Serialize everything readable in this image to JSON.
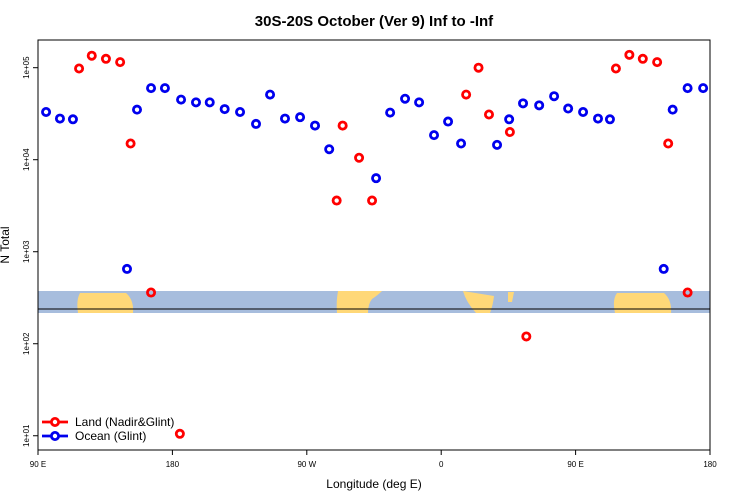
{
  "chart_data": {
    "type": "scatter",
    "title": "30S-20S October (Ver 9)   Inf to -Inf",
    "x_label": "Longitude (deg E)",
    "y_label": "N Total",
    "log_scale_y": true,
    "legend_position": "bottom-left",
    "xlim": [
      90,
      540
    ],
    "ylim": [
      7,
      200000
    ],
    "xticks": [
      {
        "value": 90,
        "label": "90 E"
      },
      {
        "value": 180,
        "label": "180"
      },
      {
        "value": 270,
        "label": "90 W"
      },
      {
        "value": 360,
        "label": "0"
      },
      {
        "value": 450,
        "label": "90 E"
      },
      {
        "value": 540,
        "label": "180"
      }
    ],
    "yticks": [
      {
        "value": 10,
        "label": "1e+01"
      },
      {
        "value": 100,
        "label": "1e+02"
      },
      {
        "value": 1000,
        "label": "1e+03"
      },
      {
        "value": 10000,
        "label": "1e+04"
      },
      {
        "value": 100000,
        "label": "1e+05"
      }
    ],
    "series": [
      {
        "name": "Land (Nadir&Glint)",
        "color": "#ff0000",
        "x": [
          117.5,
          126,
          135.5,
          145,
          152,
          165.7,
          185,
          290,
          294,
          305,
          313.7,
          376.7,
          385,
          392,
          406,
          417,
          477,
          486,
          495,
          504.6,
          512,
          525
        ],
        "values": [
          98000,
          135000,
          125000,
          115000,
          15000,
          360,
          10.5,
          3600,
          23500,
          10500,
          3600,
          51000,
          100000,
          31000,
          20000,
          120,
          98000,
          138000,
          125000,
          115000,
          15000,
          360
        ]
      },
      {
        "name": "Ocean (Glint)",
        "color": "#0000ee",
        "x": [
          95.4,
          104.7,
          113.4,
          149.6,
          156.3,
          165.7,
          175,
          185.8,
          195.8,
          205,
          215,
          225.3,
          236,
          245.4,
          255.4,
          265.5,
          275.5,
          285,
          316.4,
          325.8,
          335.8,
          345.2,
          355.2,
          364.6,
          373.3,
          397.4,
          405.5,
          414.8,
          425.6,
          435.6,
          445,
          455,
          465,
          473,
          509,
          515,
          525,
          535.4
        ],
        "values": [
          33000,
          28000,
          27500,
          650,
          35000,
          60000,
          60000,
          45000,
          42000,
          42000,
          35500,
          33000,
          24500,
          51000,
          28000,
          29000,
          23500,
          13000,
          6300,
          32500,
          46000,
          42000,
          18500,
          26000,
          15000,
          14500,
          27500,
          41000,
          39000,
          49000,
          36000,
          33000,
          28000,
          27500,
          650,
          35000,
          60000,
          60000
        ]
      }
    ]
  }
}
